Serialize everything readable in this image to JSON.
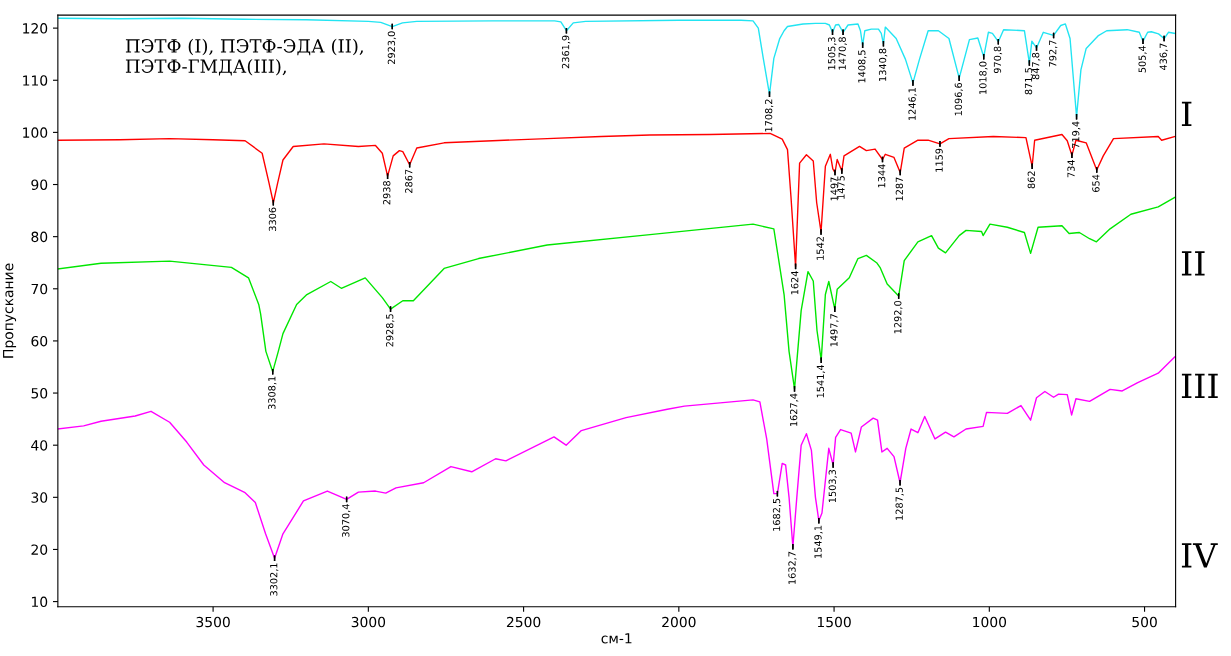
{
  "chart_data": {
    "type": "line",
    "xlabel": "см-1",
    "ylabel": "Пропускание",
    "xlim": [
      4000,
      400
    ],
    "ylim": [
      9,
      122.5
    ],
    "xticks": [
      3500,
      3000,
      2500,
      2000,
      1500,
      1000,
      500
    ],
    "yticks": [
      10,
      20,
      30,
      40,
      50,
      60,
      70,
      80,
      90,
      100,
      110,
      120
    ],
    "grid": false,
    "legend": false,
    "marker": "none",
    "line_style": "solid",
    "series": [
      {
        "name": "I",
        "color": "#22e4f2",
        "x": [
          4000,
          3800,
          3600,
          3400,
          3200,
          3000,
          2960,
          2923,
          2890,
          2844,
          2600,
          2400,
          2380,
          2362,
          2340,
          2300,
          2000,
          1800,
          1761,
          1744,
          1728,
          1708,
          1694,
          1675,
          1661,
          1650,
          1600,
          1560,
          1528,
          1515,
          1505,
          1495,
          1485,
          1471,
          1455,
          1423,
          1415,
          1408,
          1401,
          1380,
          1357,
          1348,
          1341,
          1335,
          1300,
          1270,
          1246,
          1225,
          1197,
          1164,
          1130,
          1097,
          1064,
          1037,
          1018,
          1003,
          990,
          971,
          954,
          887,
          871,
          863,
          848,
          826,
          793,
          770,
          755,
          740,
          719,
          705,
          688,
          650,
          622,
          556,
          517,
          505,
          490,
          478,
          455,
          437,
          423,
          403
        ],
        "values": [
          121.9,
          121.8,
          121.9,
          121.7,
          121.6,
          121.3,
          121.1,
          120.3,
          121,
          121.3,
          121.4,
          121.4,
          121.2,
          119.5,
          121,
          121.3,
          121.5,
          121.5,
          121.4,
          120,
          114.2,
          107.3,
          114.2,
          118,
          119.5,
          120.3,
          120.8,
          120.9,
          120.9,
          120.6,
          119.2,
          120.6,
          120.7,
          119.2,
          120.6,
          120.8,
          119.5,
          116.7,
          119.5,
          119.8,
          119.8,
          119,
          117,
          120.2,
          118,
          114,
          109.5,
          114,
          119.5,
          119.5,
          118,
          110.4,
          117.8,
          118.1,
          114.5,
          119.2,
          119,
          117.4,
          119.7,
          119.5,
          113.3,
          117.5,
          116.2,
          119.2,
          118.6,
          120.5,
          120.8,
          118,
          103,
          112,
          116.1,
          118.5,
          119.5,
          119.7,
          119.2,
          117.5,
          119.2,
          119.3,
          118.9,
          118,
          119.2,
          119
        ]
      },
      {
        "name": "II",
        "color": "#ff0000",
        "x": [
          4000,
          3800,
          3640,
          3500,
          3397,
          3342,
          3320,
          3306,
          3292,
          3275,
          3242,
          3143,
          3032,
          2977,
          2955,
          2938,
          2920,
          2900,
          2889,
          2867,
          2844,
          2756,
          2600,
          2424,
          2250,
          2093,
          1900,
          1706,
          1667,
          1650,
          1639,
          1624,
          1611,
          1589,
          1567,
          1556,
          1542,
          1528,
          1512,
          1504,
          1497,
          1490,
          1475,
          1468,
          1418,
          1396,
          1368,
          1344,
          1335,
          1307,
          1287,
          1274,
          1230,
          1197,
          1159,
          1130,
          987,
          882,
          862,
          854,
          766,
          749,
          734,
          721,
          688,
          654,
          633,
          600,
          456,
          445,
          403
        ],
        "values": [
          98.5,
          98.6,
          98.8,
          98.6,
          98.4,
          96,
          90.3,
          86.5,
          90.3,
          94.7,
          97.3,
          97.8,
          97.3,
          97.5,
          96,
          91.6,
          95.5,
          96.5,
          96.3,
          93.8,
          97,
          98,
          98.4,
          98.8,
          99.2,
          99.5,
          99.6,
          99.8,
          98.7,
          96.7,
          87.8,
          74.3,
          94.1,
          95.7,
          94.5,
          86.5,
          80.9,
          93.5,
          95.8,
          93,
          92.3,
          94.8,
          92.6,
          95.5,
          97.3,
          96.5,
          96.8,
          94.8,
          95.8,
          95.2,
          92.3,
          97,
          98.5,
          98.5,
          97.8,
          98.8,
          99.2,
          99,
          93.5,
          98.5,
          99.6,
          98.4,
          95.6,
          98.5,
          98,
          92.8,
          95.5,
          98.8,
          99.2,
          98.5,
          99.2
        ]
      },
      {
        "name": "III",
        "color": "#00e600",
        "x": [
          4000,
          3861,
          3640,
          3441,
          3386,
          3353,
          3347,
          3330,
          3308,
          3290,
          3275,
          3231,
          3198,
          3121,
          3087,
          3010,
          2955,
          2928.5,
          2889,
          2855,
          2756,
          2645,
          2424,
          2093,
          1761,
          1694,
          1661,
          1645,
          1627.4,
          1606,
          1584,
          1567,
          1555,
          1541.4,
          1528,
          1517,
          1497.7,
          1490,
          1451,
          1423,
          1396,
          1363,
          1351,
          1329,
          1292,
          1274,
          1230,
          1186,
          1164,
          1141,
          1097,
          1075,
          1025,
          1020,
          998,
          942,
          887,
          867,
          843,
          766,
          743,
          710,
          677,
          655,
          611,
          544,
          456,
          403
        ],
        "values": [
          73.8,
          74.9,
          75.3,
          74.1,
          72.1,
          67,
          65.2,
          58,
          54.1,
          58,
          61.4,
          67,
          68.9,
          71.4,
          70.1,
          72.1,
          68.3,
          66.1,
          67.7,
          67.7,
          73.9,
          75.8,
          78.4,
          80.4,
          82.4,
          81.5,
          68.9,
          58,
          50.8,
          65.8,
          73.3,
          71.5,
          62,
          56.3,
          68.9,
          71.4,
          66.1,
          69.9,
          72.1,
          75.8,
          76.4,
          75,
          74,
          70.9,
          68.6,
          75.4,
          79,
          80.2,
          77.8,
          76.9,
          80.2,
          81.2,
          81,
          80.2,
          82.4,
          81.8,
          80.8,
          76.8,
          81.8,
          82.1,
          80.6,
          80.8,
          79.6,
          79,
          81.5,
          84.3,
          85.7,
          87.5
        ]
      },
      {
        "name": "IV",
        "color": "#ff00ff",
        "x": [
          4000,
          3917,
          3861,
          3751,
          3700,
          3640,
          3585,
          3530,
          3463,
          3397,
          3364,
          3331,
          3302,
          3275,
          3209,
          3132,
          3070,
          3032,
          2977,
          2944,
          2911,
          2822,
          2734,
          2667,
          2590,
          2557,
          2402,
          2363,
          2314,
          2170,
          2037,
          1982,
          1761,
          1739,
          1717,
          1694,
          1682.5,
          1667,
          1656,
          1645,
          1632.7,
          1620,
          1606,
          1589,
          1573,
          1560,
          1549,
          1539,
          1517,
          1503,
          1495,
          1479,
          1445,
          1431,
          1412,
          1374,
          1360,
          1346,
          1329,
          1307,
          1287.5,
          1269,
          1252,
          1230,
          1208,
          1175,
          1141,
          1114,
          1075,
          1020,
          1009,
          942,
          898,
          867,
          848,
          821,
          793,
          777,
          749,
          735,
          721,
          677,
          611,
          572,
          522,
          456,
          403
        ],
        "values": [
          43.1,
          43.7,
          44.6,
          45.6,
          46.5,
          44.4,
          40.6,
          36.2,
          32.8,
          30.9,
          29,
          23,
          18.3,
          23,
          29.3,
          31.2,
          29.6,
          31,
          31.2,
          30.8,
          31.8,
          32.8,
          35.9,
          34.9,
          37.4,
          37,
          41.6,
          40,
          42.8,
          45.3,
          46.9,
          47.5,
          48.7,
          48.3,
          41.2,
          30.7,
          30.7,
          36.5,
          36.2,
          30,
          20.5,
          30,
          40,
          42.2,
          39,
          30,
          25.5,
          27,
          39.4,
          36.2,
          41.5,
          43,
          42.3,
          38.7,
          43.5,
          45.2,
          44.8,
          38.7,
          39.4,
          37.8,
          32.8,
          39.4,
          43.1,
          42.4,
          45.5,
          41.2,
          42.5,
          41.6,
          43.1,
          43.6,
          46.3,
          46.1,
          47.6,
          44.8,
          49.1,
          50.3,
          49.2,
          49.8,
          49.7,
          45.8,
          48.9,
          48.4,
          50.7,
          50.4,
          52,
          53.8,
          56.9
        ]
      }
    ],
    "annotations": [
      "ПЭТФ (I), ПЭТФ-ЭДА (II),\nПЭТФ-ГМДА(III),",
      {
        "text": "2923,0",
        "x": 2923,
        "y": 120.3
      },
      {
        "text": "2361,9",
        "x": 2362,
        "y": 119.5
      },
      {
        "text": "1708,2",
        "x": 1708,
        "y": 107.3
      },
      {
        "text": "1505,3",
        "x": 1505,
        "y": 119.2
      },
      {
        "text": "1470,8",
        "x": 1471,
        "y": 119.2
      },
      {
        "text": "1408,5",
        "x": 1408,
        "y": 116.7
      },
      {
        "text": "1340,8",
        "x": 1341,
        "y": 117
      },
      {
        "text": "1246,1",
        "x": 1246,
        "y": 109.5
      },
      {
        "text": "1096,6",
        "x": 1097,
        "y": 110.4
      },
      {
        "text": "1018,0",
        "x": 1018,
        "y": 114.5
      },
      {
        "text": "970,8",
        "x": 971,
        "y": 117.4
      },
      {
        "text": "871,5",
        "x": 871,
        "y": 113.3
      },
      {
        "text": "847,8",
        "x": 848,
        "y": 116.2
      },
      {
        "text": "792,7",
        "x": 793,
        "y": 118.6
      },
      {
        "text": "719,4",
        "x": 719,
        "y": 103
      },
      {
        "text": "505,4",
        "x": 505,
        "y": 117.5
      },
      {
        "text": "436,7",
        "x": 437,
        "y": 118
      },
      {
        "text": "3306",
        "x": 3306,
        "y": 86.5
      },
      {
        "text": "2938",
        "x": 2938,
        "y": 91.6
      },
      {
        "text": "2867",
        "x": 2867,
        "y": 93.8
      },
      {
        "text": "1624",
        "x": 1624,
        "y": 74.3
      },
      {
        "text": "1542",
        "x": 1542,
        "y": 80.9
      },
      {
        "text": "1497",
        "x": 1497,
        "y": 92.3
      },
      {
        "text": "1475",
        "x": 1475,
        "y": 92.6
      },
      {
        "text": "1344",
        "x": 1344,
        "y": 94.8
      },
      {
        "text": "1287",
        "x": 1287,
        "y": 92.3
      },
      {
        "text": "1159",
        "x": 1159,
        "y": 97.8
      },
      {
        "text": "862",
        "x": 862,
        "y": 93.5
      },
      {
        "text": "734",
        "x": 734,
        "y": 95.6
      },
      {
        "text": "654",
        "x": 654,
        "y": 92.8
      },
      {
        "text": "3308,1",
        "x": 3308,
        "y": 54.1
      },
      {
        "text": "2928,5",
        "x": 2928.5,
        "y": 66.1
      },
      {
        "text": "1627,4",
        "x": 1627.4,
        "y": 50.8
      },
      {
        "text": "1541,4",
        "x": 1541.4,
        "y": 56.3
      },
      {
        "text": "1497,7",
        "x": 1497.7,
        "y": 66.1
      },
      {
        "text": "1292,0",
        "x": 1292,
        "y": 68.6
      },
      {
        "text": "3302,1",
        "x": 3302,
        "y": 18.3
      },
      {
        "text": "3070,4",
        "x": 3070,
        "y": 29.6
      },
      {
        "text": "1682,5",
        "x": 1682.5,
        "y": 30.7
      },
      {
        "text": "1632,7",
        "x": 1632.7,
        "y": 20.5
      },
      {
        "text": "1549,1",
        "x": 1549,
        "y": 25.5
      },
      {
        "text": "1503,3",
        "x": 1503,
        "y": 36.2
      },
      {
        "text": "1287,5",
        "x": 1287.5,
        "y": 32.8
      }
    ]
  }
}
